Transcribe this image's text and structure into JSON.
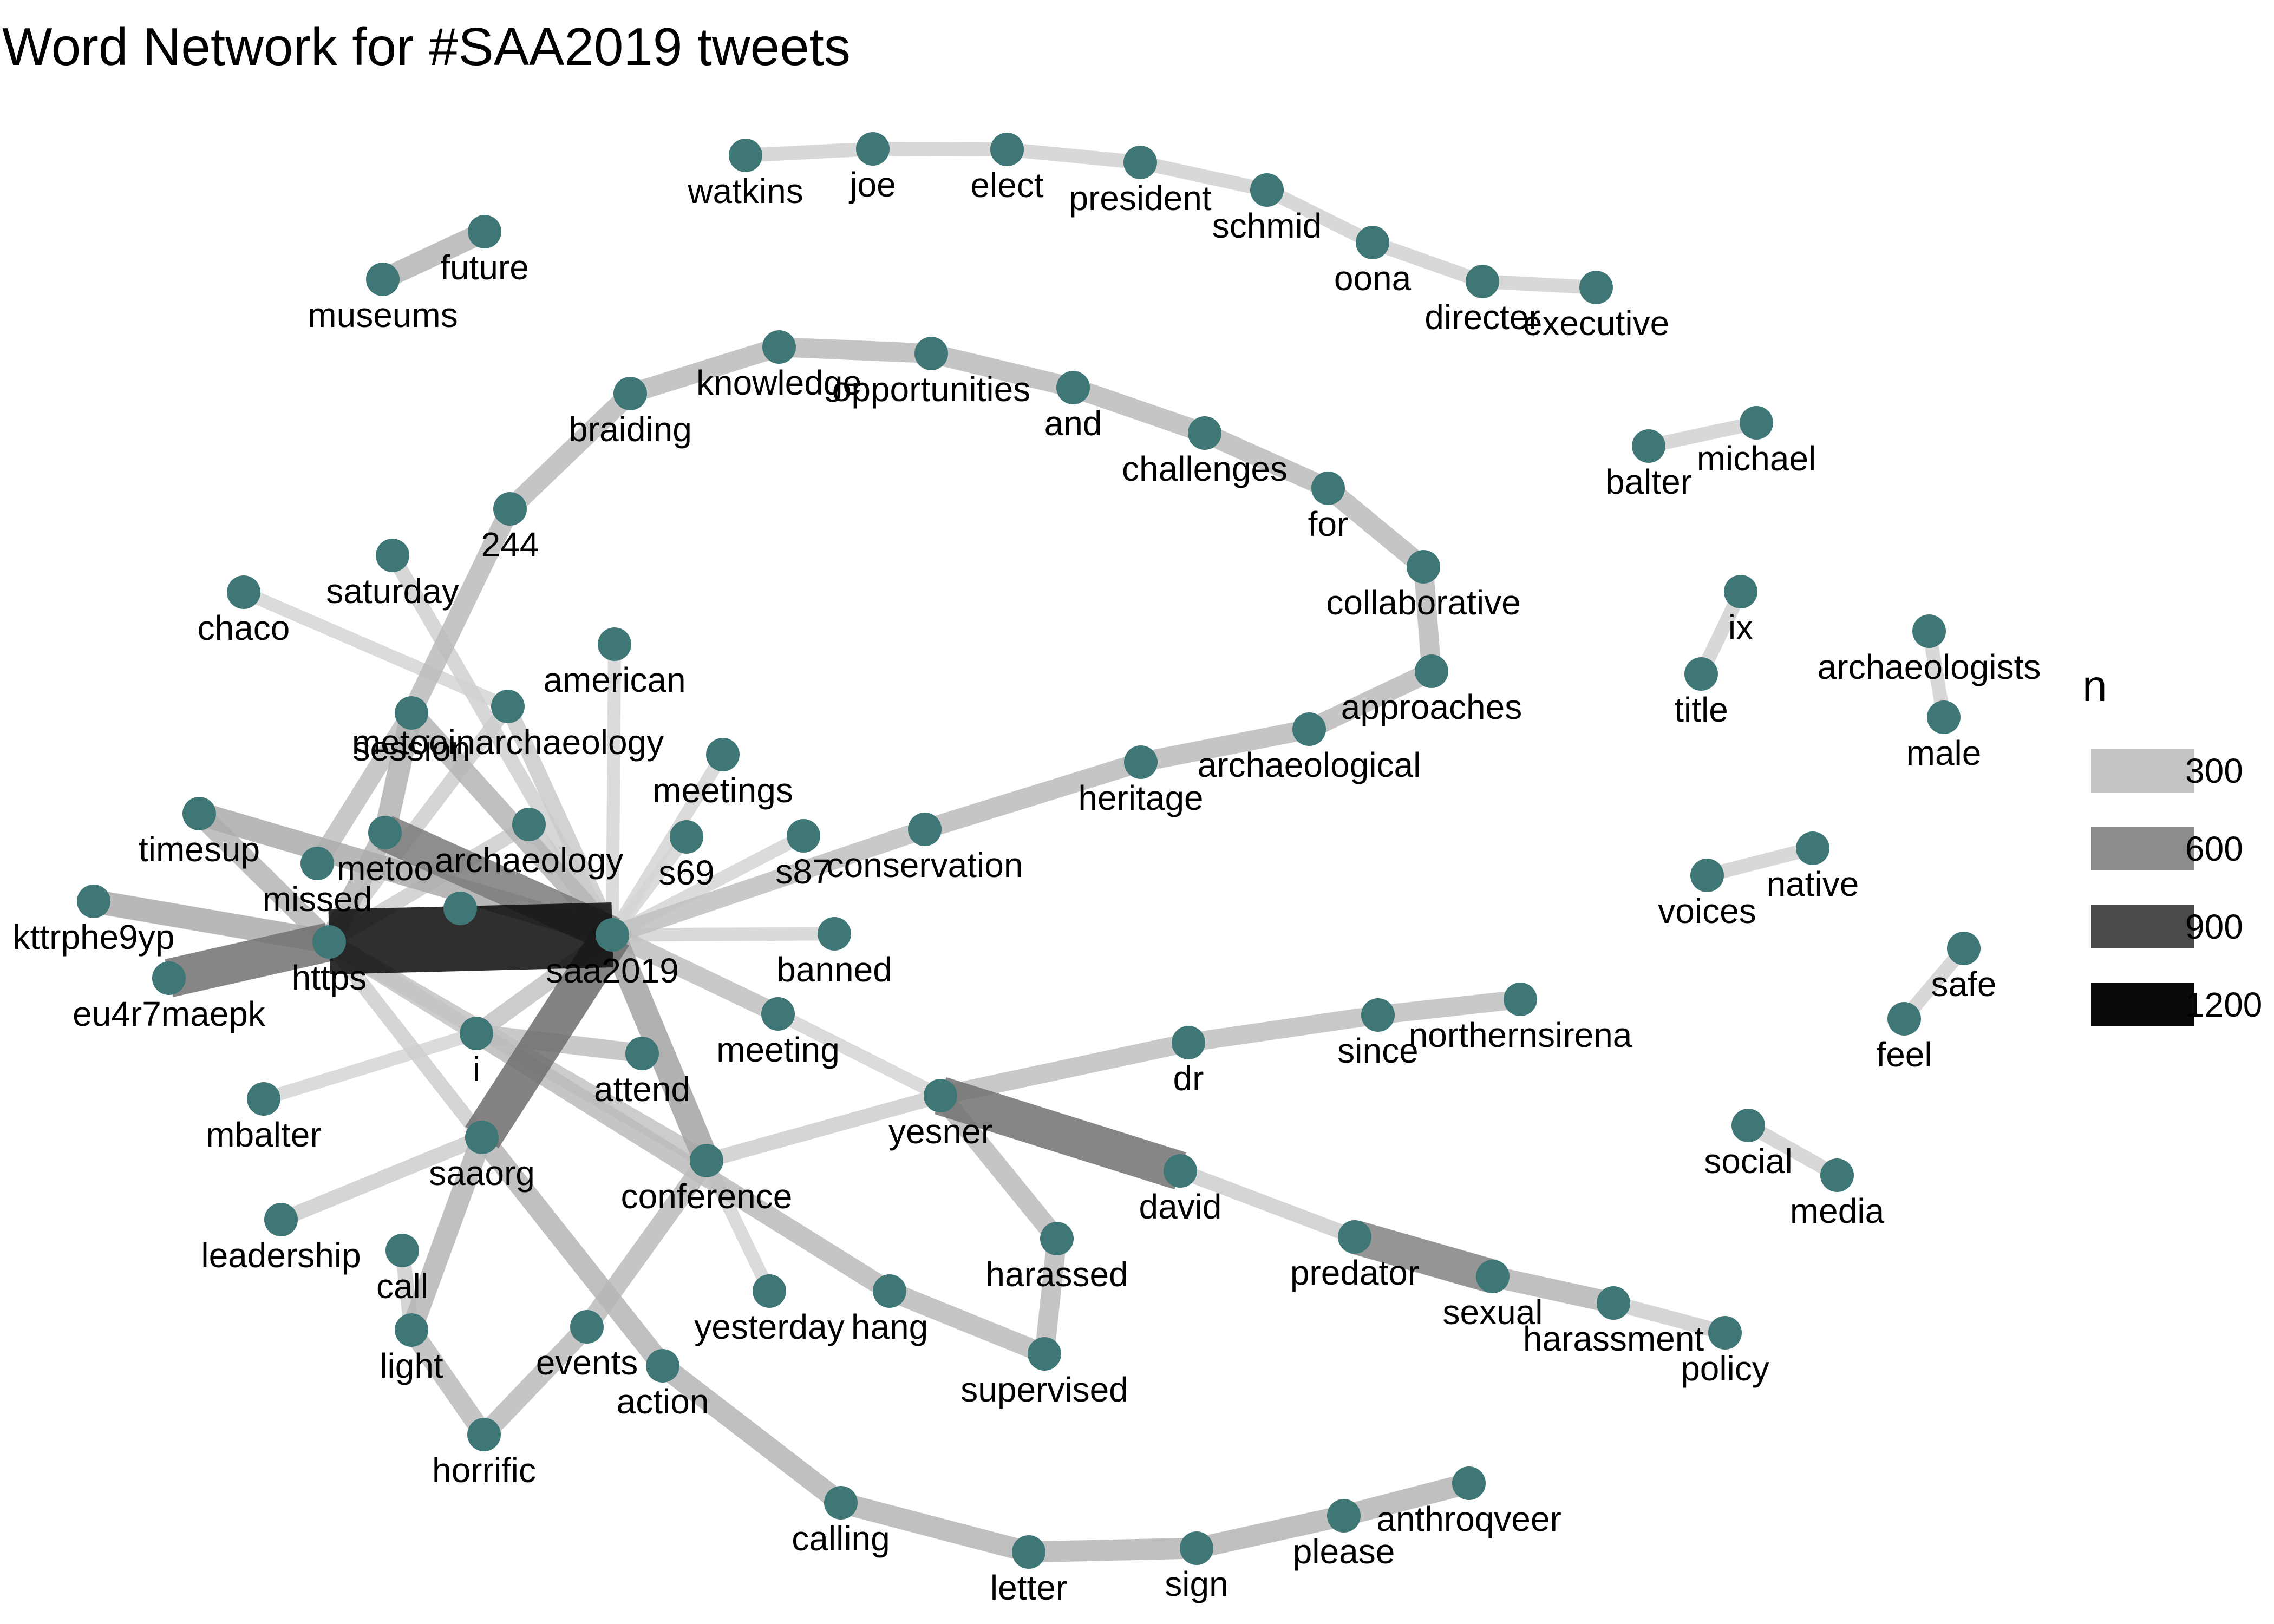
{
  "title": "Word Network for #SAA2019 tweets",
  "node_color": "#3f7777",
  "legend": {
    "title": "n",
    "items": [
      {
        "label": "300",
        "color": "#c4c4c4"
      },
      {
        "label": "600",
        "color": "#8c8c8c"
      },
      {
        "label": "900",
        "color": "#4a4a4a"
      },
      {
        "label": "1200",
        "color": "#0a0a0a"
      }
    ]
  },
  "nodes": [
    {
      "id": "watkins",
      "label": "watkins"
    },
    {
      "id": "joe",
      "label": "joe"
    },
    {
      "id": "elect",
      "label": "elect"
    },
    {
      "id": "president",
      "label": "president"
    },
    {
      "id": "schmid",
      "label": "schmid"
    },
    {
      "id": "oona",
      "label": "oona"
    },
    {
      "id": "directer",
      "label": "directer"
    },
    {
      "id": "executive",
      "label": "executive"
    },
    {
      "id": "future",
      "label": "future"
    },
    {
      "id": "museums",
      "label": "museums"
    },
    {
      "id": "knowledge",
      "label": "knowledge"
    },
    {
      "id": "opportunities",
      "label": "opportunities"
    },
    {
      "id": "braiding",
      "label": "braiding"
    },
    {
      "id": "and",
      "label": "and"
    },
    {
      "id": "challenges",
      "label": "challenges"
    },
    {
      "id": "for",
      "label": "for"
    },
    {
      "id": "collaborative",
      "label": "collaborative"
    },
    {
      "id": "approaches",
      "label": "approaches"
    },
    {
      "id": "archaeological",
      "label": "archaeological"
    },
    {
      "id": "heritage",
      "label": "heritage"
    },
    {
      "id": "conservation",
      "label": "conservation"
    },
    {
      "id": "244",
      "label": "244"
    },
    {
      "id": "michael",
      "label": "michael"
    },
    {
      "id": "balter",
      "label": "balter"
    },
    {
      "id": "saturday",
      "label": "saturday"
    },
    {
      "id": "chaco",
      "label": "chaco"
    },
    {
      "id": "american",
      "label": "american"
    },
    {
      "id": "session",
      "label": "session"
    },
    {
      "id": "metooinarchaeology",
      "label": "metooinarchaeology"
    },
    {
      "id": "meetings",
      "label": "meetings"
    },
    {
      "id": "s69",
      "label": "s69"
    },
    {
      "id": "s87",
      "label": "s87"
    },
    {
      "id": "timesup",
      "label": "timesup"
    },
    {
      "id": "metoo",
      "label": "metoo"
    },
    {
      "id": "archaeology",
      "label": "archaeology"
    },
    {
      "id": "missed",
      "label": "missed"
    },
    {
      "id": "kttrphe9yp",
      "label": "kttrphe9yp"
    },
    {
      "id": "https",
      "label": "https"
    },
    {
      "id": "saa2019",
      "label": "saa2019"
    },
    {
      "id": "banned",
      "label": "banned"
    },
    {
      "id": "eu4r7maepk",
      "label": "eu4r7maepk"
    },
    {
      "id": "meeting",
      "label": "meeting"
    },
    {
      "id": "i",
      "label": "i"
    },
    {
      "id": "attend",
      "label": "attend"
    },
    {
      "id": "mbalter",
      "label": "mbalter"
    },
    {
      "id": "saaorg",
      "label": "saaorg"
    },
    {
      "id": "conference",
      "label": "conference"
    },
    {
      "id": "leadership",
      "label": "leadership"
    },
    {
      "id": "call",
      "label": "call"
    },
    {
      "id": "light",
      "label": "light"
    },
    {
      "id": "horrific",
      "label": "horrific"
    },
    {
      "id": "events",
      "label": "events"
    },
    {
      "id": "action",
      "label": "action"
    },
    {
      "id": "yesterday",
      "label": "yesterday"
    },
    {
      "id": "hang",
      "label": "hang"
    },
    {
      "id": "supervised",
      "label": "supervised"
    },
    {
      "id": "harassed",
      "label": "harassed"
    },
    {
      "id": "yesner",
      "label": "yesner"
    },
    {
      "id": "david",
      "label": "david"
    },
    {
      "id": "dr",
      "label": "dr"
    },
    {
      "id": "since",
      "label": "since"
    },
    {
      "id": "northernsirena",
      "label": "northernsirena"
    },
    {
      "id": "predator",
      "label": "predator"
    },
    {
      "id": "sexual",
      "label": "sexual"
    },
    {
      "id": "harassment",
      "label": "harassment"
    },
    {
      "id": "policy",
      "label": "policy"
    },
    {
      "id": "calling",
      "label": "calling"
    },
    {
      "id": "letter",
      "label": "letter"
    },
    {
      "id": "sign",
      "label": "sign"
    },
    {
      "id": "please",
      "label": "please"
    },
    {
      "id": "anthroqveer",
      "label": "anthroqveer"
    },
    {
      "id": "ix",
      "label": "ix"
    },
    {
      "id": "title",
      "label": "title"
    },
    {
      "id": "archaeologists",
      "label": "archaeologists"
    },
    {
      "id": "male",
      "label": "male"
    },
    {
      "id": "native",
      "label": "native"
    },
    {
      "id": "voices",
      "label": "voices"
    },
    {
      "id": "safe",
      "label": "safe"
    },
    {
      "id": "feel",
      "label": "feel"
    },
    {
      "id": "social",
      "label": "social"
    },
    {
      "id": "media",
      "label": "media"
    }
  ],
  "edges": [
    {
      "from": "watkins",
      "to": "joe",
      "n": 180
    },
    {
      "from": "joe",
      "to": "elect",
      "n": 180
    },
    {
      "from": "elect",
      "to": "president",
      "n": 180
    },
    {
      "from": "president",
      "to": "schmid",
      "n": 180
    },
    {
      "from": "schmid",
      "to": "oona",
      "n": 180
    },
    {
      "from": "oona",
      "to": "directer",
      "n": 180
    },
    {
      "from": "directer",
      "to": "executive",
      "n": 180
    },
    {
      "from": "museums",
      "to": "future",
      "n": 330
    },
    {
      "from": "244",
      "to": "braiding",
      "n": 300
    },
    {
      "from": "braiding",
      "to": "knowledge",
      "n": 300
    },
    {
      "from": "knowledge",
      "to": "opportunities",
      "n": 300
    },
    {
      "from": "opportunities",
      "to": "and",
      "n": 300
    },
    {
      "from": "and",
      "to": "challenges",
      "n": 300
    },
    {
      "from": "challenges",
      "to": "for",
      "n": 300
    },
    {
      "from": "for",
      "to": "collaborative",
      "n": 300
    },
    {
      "from": "collaborative",
      "to": "approaches",
      "n": 300
    },
    {
      "from": "approaches",
      "to": "archaeological",
      "n": 300
    },
    {
      "from": "archaeological",
      "to": "heritage",
      "n": 300
    },
    {
      "from": "heritage",
      "to": "conservation",
      "n": 300
    },
    {
      "from": "conservation",
      "to": "saa2019",
      "n": 280
    },
    {
      "from": "244",
      "to": "session",
      "n": 300
    },
    {
      "from": "balter",
      "to": "michael",
      "n": 180
    },
    {
      "from": "saturday",
      "to": "saa2019",
      "n": 190
    },
    {
      "from": "chaco",
      "to": "metooinarchaeology",
      "n": 160
    },
    {
      "from": "american",
      "to": "saa2019",
      "n": 160
    },
    {
      "from": "session",
      "to": "saa2019",
      "n": 330
    },
    {
      "from": "session",
      "to": "metoo",
      "n": 350
    },
    {
      "from": "session",
      "to": "missed",
      "n": 280
    },
    {
      "from": "metooinarchaeology",
      "to": "saa2019",
      "n": 220
    },
    {
      "from": "metooinarchaeology",
      "to": "https",
      "n": 200
    },
    {
      "from": "meetings",
      "to": "saa2019",
      "n": 160
    },
    {
      "from": "s69",
      "to": "saa2019",
      "n": 160
    },
    {
      "from": "s87",
      "to": "saa2019",
      "n": 160
    },
    {
      "from": "timesup",
      "to": "saa2019",
      "n": 380
    },
    {
      "from": "timesup",
      "to": "https",
      "n": 330
    },
    {
      "from": "metoo",
      "to": "saa2019",
      "n": 650
    },
    {
      "from": "metoo",
      "to": "https",
      "n": 330
    },
    {
      "from": "archaeology",
      "to": "saa2019",
      "n": 220
    },
    {
      "from": "archaeology",
      "to": "https",
      "n": 200
    },
    {
      "from": "kttrphe9yp",
      "to": "https",
      "n": 380
    },
    {
      "from": "eu4r7maepk",
      "to": "https",
      "n": 700
    },
    {
      "from": "https",
      "to": "saa2019",
      "n": 1250
    },
    {
      "from": "https",
      "to": "i",
      "n": 250
    },
    {
      "from": "https",
      "to": "saaorg",
      "n": 200
    },
    {
      "from": "https",
      "to": "conference",
      "n": 260
    },
    {
      "from": "saa2019",
      "to": "banned",
      "n": 170
    },
    {
      "from": "saa2019",
      "to": "meeting",
      "n": 280
    },
    {
      "from": "saa2019",
      "to": "saaorg",
      "n": 720
    },
    {
      "from": "saa2019",
      "to": "conference",
      "n": 430
    },
    {
      "from": "saa2019",
      "to": "i",
      "n": 260
    },
    {
      "from": "meeting",
      "to": "yesner",
      "n": 160
    },
    {
      "from": "i",
      "to": "mbalter",
      "n": 160
    },
    {
      "from": "i",
      "to": "attend",
      "n": 280
    },
    {
      "from": "i",
      "to": "hang",
      "n": 300
    },
    {
      "from": "saaorg",
      "to": "leadership",
      "n": 200
    },
    {
      "from": "saaorg",
      "to": "light",
      "n": 330
    },
    {
      "from": "saaorg",
      "to": "action",
      "n": 330
    },
    {
      "from": "call",
      "to": "light",
      "n": 200
    },
    {
      "from": "light",
      "to": "horrific",
      "n": 300
    },
    {
      "from": "horrific",
      "to": "events",
      "n": 300
    },
    {
      "from": "events",
      "to": "conference",
      "n": 300
    },
    {
      "from": "conference",
      "to": "yesterday",
      "n": 160
    },
    {
      "from": "conference",
      "to": "yesner",
      "n": 200
    },
    {
      "from": "hang",
      "to": "supervised",
      "n": 300
    },
    {
      "from": "supervised",
      "to": "harassed",
      "n": 300
    },
    {
      "from": "harassed",
      "to": "yesner",
      "n": 300
    },
    {
      "from": "yesner",
      "to": "dr",
      "n": 280
    },
    {
      "from": "yesner",
      "to": "david",
      "n": 700
    },
    {
      "from": "dr",
      "to": "since",
      "n": 280
    },
    {
      "from": "since",
      "to": "northernsirena",
      "n": 280
    },
    {
      "from": "david",
      "to": "predator",
      "n": 200
    },
    {
      "from": "predator",
      "to": "sexual",
      "n": 600
    },
    {
      "from": "sexual",
      "to": "harassment",
      "n": 330
    },
    {
      "from": "harassment",
      "to": "policy",
      "n": 200
    },
    {
      "from": "action",
      "to": "calling",
      "n": 330
    },
    {
      "from": "calling",
      "to": "letter",
      "n": 330
    },
    {
      "from": "letter",
      "to": "sign",
      "n": 330
    },
    {
      "from": "sign",
      "to": "please",
      "n": 330
    },
    {
      "from": "please",
      "to": "anthroqveer",
      "n": 330
    },
    {
      "from": "ix",
      "to": "title",
      "n": 180
    },
    {
      "from": "archaeologists",
      "to": "male",
      "n": 180
    },
    {
      "from": "voices",
      "to": "native",
      "n": 180
    },
    {
      "from": "feel",
      "to": "safe",
      "n": 180
    },
    {
      "from": "social",
      "to": "media",
      "n": 180
    }
  ]
}
